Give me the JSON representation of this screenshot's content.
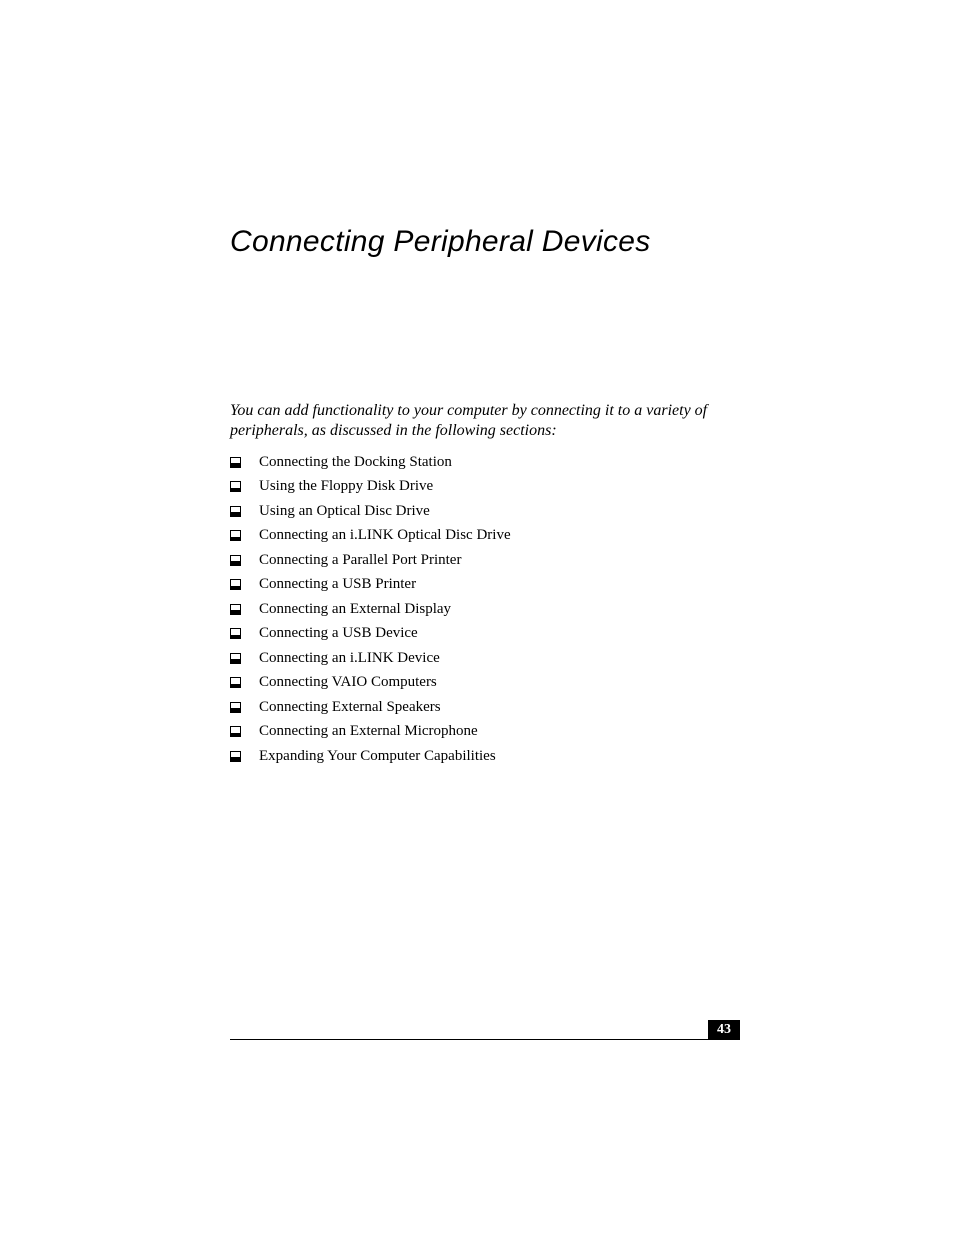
{
  "chapter": {
    "title": "Connecting Peripheral Devices"
  },
  "intro": {
    "text": "You can add functionality to your computer by connecting it to a variety of peripherals, as discussed in the following sections:"
  },
  "topics": [
    {
      "label": "Connecting the Docking Station"
    },
    {
      "label": "Using the Floppy Disk Drive"
    },
    {
      "label": "Using an Optical Disc Drive"
    },
    {
      "label": "Connecting an i.LINK Optical Disc Drive"
    },
    {
      "label": "Connecting a Parallel Port Printer"
    },
    {
      "label": "Connecting a USB Printer"
    },
    {
      "label": "Connecting an External Display"
    },
    {
      "label": "Connecting a USB Device"
    },
    {
      "label": "Connecting an i.LINK Device"
    },
    {
      "label": "Connecting VAIO Computers"
    },
    {
      "label": "Connecting External Speakers"
    },
    {
      "label": "Connecting an External Microphone"
    },
    {
      "label": "Expanding Your Computer Capabilities"
    }
  ],
  "footer": {
    "page_number": "43"
  },
  "styling": {
    "page_bg": "#ffffff",
    "text_color": "#000000",
    "title_font": "Arial",
    "title_fontsize": 30,
    "body_font": "Times New Roman",
    "body_fontsize": 15,
    "intro_fontsize": 16,
    "page_number_bg": "#000000",
    "page_number_fg": "#ffffff"
  }
}
